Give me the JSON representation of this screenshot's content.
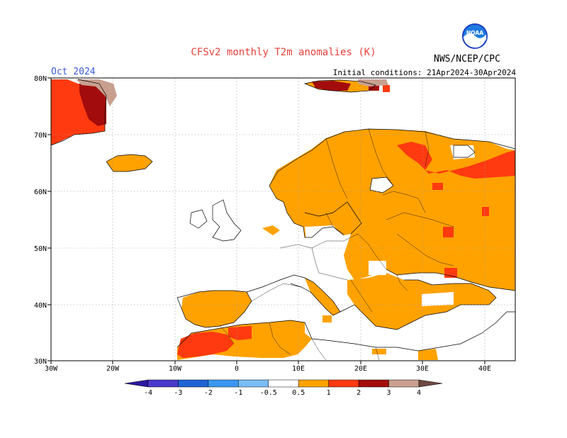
{
  "header": {
    "title": "CFSv2 monthly T2m anomalies (K)",
    "period": "Oct 2024",
    "initial_conditions": "Initial conditions: 21Apr2024-30Apr2024",
    "agency": "NWS/NCEP/CPC",
    "logo_text": "NOAA"
  },
  "axes": {
    "lat_labels": [
      "80N",
      "70N",
      "60N",
      "50N",
      "40N",
      "30N"
    ],
    "lon_labels": [
      "30W",
      "20W",
      "10W",
      "0",
      "10E",
      "20E",
      "30E",
      "40E"
    ]
  },
  "colorbar": {
    "labels": [
      "-4",
      "-3",
      "-2",
      "-1",
      "-0.5",
      "0.5",
      "1",
      "2",
      "3",
      "4"
    ],
    "colors": [
      "#2a1aa0",
      "#4a3acb",
      "#1f64d6",
      "#3a97f0",
      "#79bcf7",
      "#ffffff",
      "#ffa200",
      "#ff3a10",
      "#a30c0c",
      "#c9a090",
      "#6e4a42"
    ]
  },
  "legend_colors": {
    "anom_05_1": "#ffa200",
    "anom_1_2": "#ff3a10",
    "anom_2_3": "#a30c0c",
    "anom_3_4": "#c9a090"
  }
}
